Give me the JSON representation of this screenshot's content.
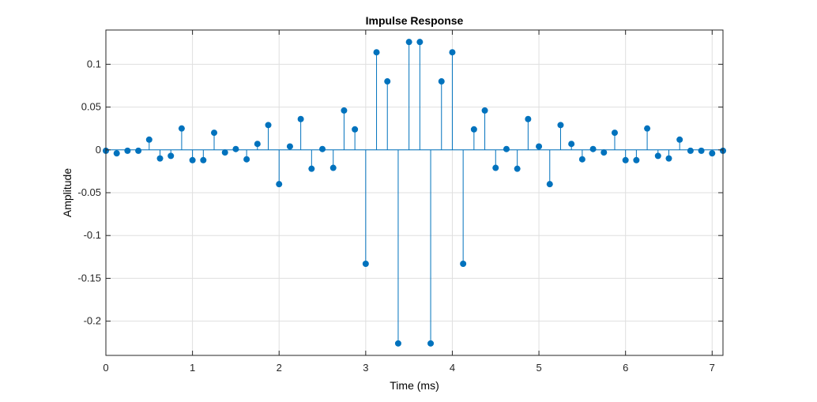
{
  "chart_data": {
    "type": "stem",
    "title": "Impulse Response",
    "xlabel": "Time (ms)",
    "ylabel": "Amplitude",
    "xlim": [
      0,
      7.125
    ],
    "ylim": [
      -0.24,
      0.14
    ],
    "xticks": [
      0,
      1,
      2,
      3,
      4,
      5,
      6,
      7
    ],
    "xtick_labels": [
      "0",
      "1",
      "2",
      "3",
      "4",
      "5",
      "6",
      "7"
    ],
    "yticks": [
      0.1,
      0.05,
      0,
      -0.05,
      -0.1,
      -0.15,
      -0.2
    ],
    "ytick_labels": [
      "0.1",
      "0.05",
      "0",
      "-0.05",
      "-0.1",
      "-0.15",
      "-0.2"
    ],
    "grid": true,
    "series": [
      {
        "color": "#0072BD",
        "x": [
          0,
          0.125,
          0.25,
          0.375,
          0.5,
          0.625,
          0.75,
          0.875,
          1,
          1.125,
          1.25,
          1.375,
          1.5,
          1.625,
          1.75,
          1.875,
          2,
          2.125,
          2.25,
          2.375,
          2.5,
          2.625,
          2.75,
          2.875,
          3,
          3.125,
          3.25,
          3.375,
          3.5,
          3.625,
          3.75,
          3.875,
          4,
          4.125,
          4.25,
          4.375,
          4.5,
          4.625,
          4.75,
          4.875,
          5,
          5.125,
          5.25,
          5.375,
          5.5,
          5.625,
          5.75,
          5.875,
          6,
          6.125,
          6.25,
          6.375,
          6.5,
          6.625,
          6.75,
          6.875,
          7,
          7.125
        ],
        "y": [
          -0.001,
          -0.004,
          -0.001,
          -0.001,
          0.012,
          -0.01,
          -0.007,
          0.025,
          -0.012,
          -0.012,
          0.02,
          -0.003,
          0.001,
          -0.011,
          0.007,
          0.029,
          -0.04,
          0.004,
          0.036,
          -0.022,
          0.001,
          -0.021,
          0.046,
          0.024,
          -0.133,
          0.114,
          0.08,
          -0.226,
          0.126,
          0.126,
          -0.226,
          0.08,
          0.114,
          -0.133,
          0.024,
          0.046,
          -0.021,
          0.001,
          -0.022,
          0.036,
          0.004,
          -0.04,
          0.029,
          0.007,
          -0.011,
          0.001,
          -0.003,
          0.02,
          -0.012,
          -0.012,
          0.025,
          -0.007,
          -0.01,
          0.012,
          -0.001,
          -0.001,
          -0.004,
          -0.001
        ]
      }
    ]
  }
}
